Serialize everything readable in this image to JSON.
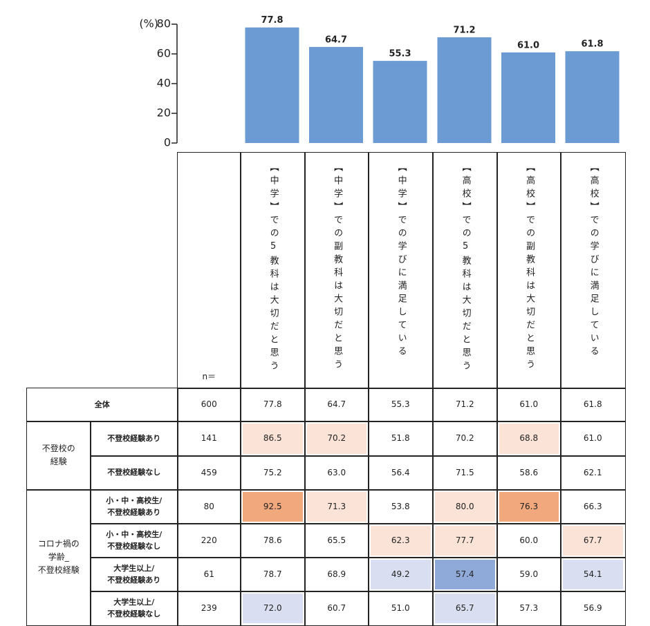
{
  "chart_data": {
    "type": "bar",
    "y_unit": "(%)",
    "categories": [
      "【中学】での5教科は大切だと思う",
      "【中学】での副教科は大切だと思う",
      "【中学】での学びに満足している",
      "【高校】での5教科は大切だと思う",
      "【高校】での副教科は大切だと思う",
      "【高校】での学びに満足している"
    ],
    "values": [
      77.8,
      64.7,
      55.3,
      71.2,
      61.0,
      61.8
    ],
    "value_labels": [
      "77.8",
      "64.7",
      "55.3",
      "71.2",
      "61.0",
      "61.8"
    ],
    "color": "#6b9bd2",
    "ylim": [
      0,
      80
    ],
    "yticks": [
      0,
      20,
      40,
      60,
      80
    ]
  },
  "table": {
    "n_label": "n＝",
    "overall": {
      "label": "全体",
      "n": 600,
      "values": [
        "77.8",
        "64.7",
        "55.3",
        "71.2",
        "61.0",
        "61.8"
      ]
    },
    "groups": [
      {
        "label": "不登校の\n経験",
        "rows": [
          {
            "label": "不登校経験あり",
            "n": 141,
            "values": [
              "86.5",
              "70.2",
              "51.8",
              "70.2",
              "68.8",
              "61.0"
            ],
            "colors": [
              "#fbe3d8",
              "#fbe3d8",
              null,
              null,
              "#fbe3d8",
              null
            ]
          },
          {
            "label": "不登校経験なし",
            "n": 459,
            "values": [
              "75.2",
              "63.0",
              "56.4",
              "71.5",
              "58.6",
              "62.1"
            ],
            "colors": [
              null,
              null,
              null,
              null,
              null,
              null
            ]
          }
        ]
      },
      {
        "label": "コロナ禍の\n学齢_\n不登校経験",
        "rows": [
          {
            "label": "小・中・高校生/\n不登校経験あり",
            "n": 80,
            "values": [
              "92.5",
              "71.3",
              "53.8",
              "80.0",
              "76.3",
              "66.3"
            ],
            "colors": [
              "#f0a87c",
              "#fbe3d8",
              null,
              "#fbe3d8",
              "#f0a87c",
              null
            ]
          },
          {
            "label": "小・中・高校生/\n不登校経験なし",
            "n": 220,
            "values": [
              "78.6",
              "65.5",
              "62.3",
              "77.7",
              "60.0",
              "67.7"
            ],
            "colors": [
              null,
              null,
              "#fbe3d8",
              "#fbe3d8",
              null,
              "#fbe3d8"
            ]
          },
          {
            "label": "大学生以上/\n不登校経験あり",
            "n": 61,
            "values": [
              "78.7",
              "68.9",
              "49.2",
              "57.4",
              "59.0",
              "54.1"
            ],
            "colors": [
              null,
              null,
              "#d9dff0",
              "#8fa9d8",
              null,
              "#d9dff0"
            ]
          },
          {
            "label": "大学生以上/\n不登校経験なし",
            "n": 239,
            "values": [
              "72.0",
              "60.7",
              "51.0",
              "65.7",
              "57.3",
              "56.9"
            ],
            "colors": [
              "#d9dff0",
              null,
              null,
              "#d9dff0",
              null,
              null
            ]
          }
        ]
      }
    ]
  }
}
